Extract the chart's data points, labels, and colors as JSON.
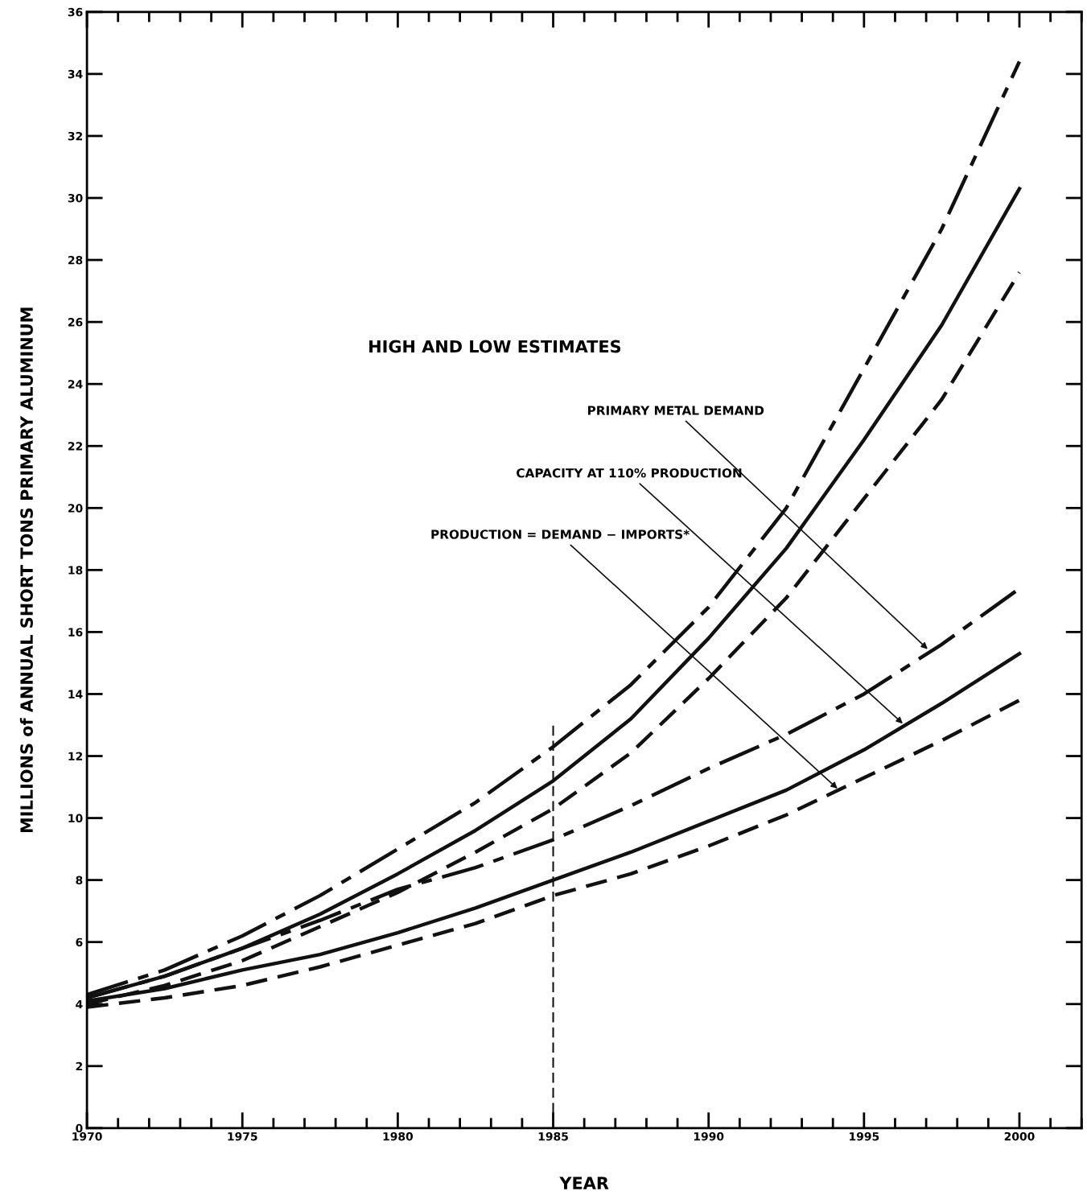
{
  "chart_data": {
    "type": "line",
    "title": "HIGH AND LOW ESTIMATES",
    "xlabel": "YEAR",
    "ylabel": "MILLIONS of ANNUAL SHORT TONS PRIMARY ALUMINUM",
    "x": [
      1970,
      1972.5,
      1975,
      1977.5,
      1980,
      1982.5,
      1985,
      1987.5,
      1990,
      1992.5,
      1995,
      1997.5,
      2000
    ],
    "series": [
      {
        "color": "#111111",
        "line_style": "dashdot",
        "values": [
          4.3,
          5.1,
          6.2,
          7.5,
          9.0,
          10.5,
          12.3,
          14.3,
          16.8,
          20.0,
          24.5,
          29.0,
          34.4
        ]
      },
      {
        "color": "#111111",
        "line_style": "solid",
        "values": [
          4.2,
          4.9,
          5.8,
          6.9,
          8.2,
          9.6,
          11.2,
          13.2,
          15.8,
          18.7,
          22.2,
          25.9,
          30.3
        ]
      },
      {
        "color": "#111111",
        "line_style": "dashed",
        "values": [
          4.0,
          4.6,
          5.4,
          6.5,
          7.6,
          8.9,
          10.3,
          12.1,
          14.5,
          17.1,
          20.3,
          23.5,
          27.6
        ]
      },
      {
        "color": "#111111",
        "line_style": "dashdot",
        "values": [
          4.2,
          4.9,
          5.8,
          6.7,
          7.7,
          8.4,
          9.3,
          10.4,
          11.6,
          12.7,
          14.0,
          15.6,
          17.4
        ]
      },
      {
        "color": "#111111",
        "line_style": "solid",
        "values": [
          4.1,
          4.5,
          5.1,
          5.6,
          6.3,
          7.1,
          8.0,
          8.9,
          9.9,
          10.9,
          12.2,
          13.7,
          15.3
        ]
      },
      {
        "color": "#111111",
        "line_style": "dashed",
        "values": [
          3.9,
          4.2,
          4.6,
          5.2,
          5.9,
          6.6,
          7.5,
          8.2,
          9.1,
          10.1,
          11.3,
          12.5,
          13.8
        ]
      }
    ],
    "annotations": [
      {
        "text": "PRIMARY METAL DEMAND",
        "x": 1997.1,
        "y": 15.4
      },
      {
        "text": "CAPACITY AT 110% PRODUCTION",
        "x": 1996.3,
        "y": 13.0
      },
      {
        "text": "PRODUCTION = DEMAND − IMPORTS*",
        "x": 1994.2,
        "y": 10.9
      }
    ],
    "ref_lines": [
      {
        "axis": "x",
        "value": 1985,
        "line_style": "dashed"
      }
    ],
    "xlim": [
      1970,
      2002
    ],
    "xticks": [
      1970,
      1975,
      1980,
      1985,
      1990,
      1995,
      2000
    ],
    "ylim": [
      0,
      36
    ],
    "yticks": [
      0,
      2,
      4,
      6,
      8,
      10,
      12,
      14,
      16,
      18,
      20,
      22,
      24,
      26,
      28,
      30,
      32,
      34,
      36
    ],
    "grid": false,
    "legend": false,
    "marker": "none"
  }
}
